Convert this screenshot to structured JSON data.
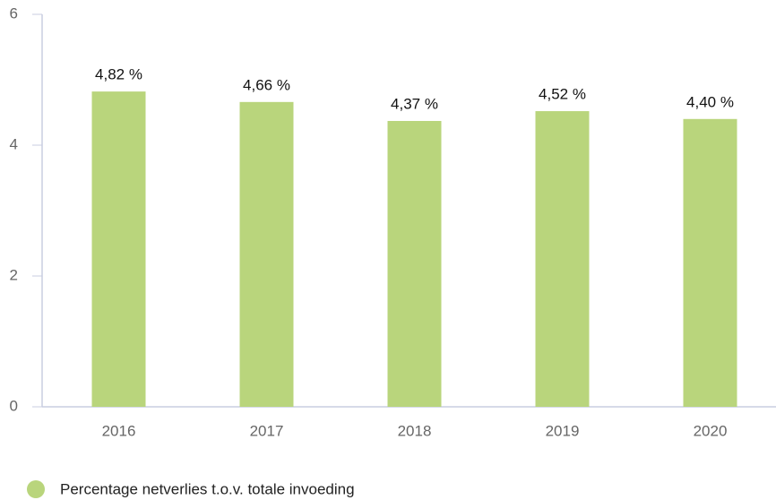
{
  "chart_data": {
    "type": "bar",
    "categories": [
      "2016",
      "2017",
      "2018",
      "2019",
      "2020"
    ],
    "series": [
      {
        "name": "Percentage netverlies t.o.v. totale invoeding",
        "color": "#b9d57c",
        "values": [
          4.82,
          4.66,
          4.37,
          4.52,
          4.4
        ],
        "value_labels": [
          "4,82 %",
          "4,66 %",
          "4,37 %",
          "4,52 %",
          "4,40 %"
        ]
      }
    ],
    "ylim": [
      0,
      6
    ],
    "yticks": [
      0,
      2,
      4,
      6
    ],
    "grid": false,
    "legend": "bottom-left"
  }
}
